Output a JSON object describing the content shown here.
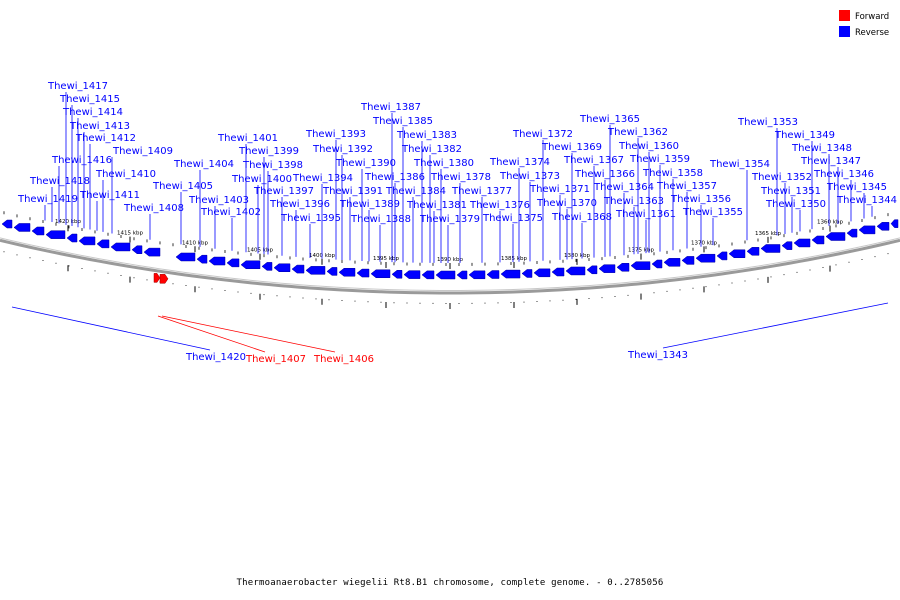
{
  "legend": {
    "forward_label": "Forward",
    "reverse_label": "Reverse",
    "forward_color": "#ff0000",
    "reverse_color": "#0000ff"
  },
  "caption": "Thermoanaerobacter wiegelii Rt8.B1 chromosome, complete genome. - 0..2785056",
  "scale_labels": [
    "1420 kbp",
    "1415 kbp",
    "1410 kbp",
    "1405 kbp",
    "1400 kbp",
    "1395 kbp",
    "1390 kbp",
    "1385 kbp",
    "1380 kbp",
    "1375 kbp",
    "1370 kbp",
    "1365 kbp",
    "1360 kbp"
  ],
  "reverse_genes": [
    "Thewi_1419",
    "Thewi_1418",
    "Thewi_1416",
    "Thewi_1417",
    "Thewi_1415",
    "Thewi_1414",
    "Thewi_1413",
    "Thewi_1412",
    "Thewi_1411",
    "Thewi_1410",
    "Thewi_1409",
    "Thewi_1408",
    "Thewi_1405",
    "Thewi_1404",
    "Thewi_1403",
    "Thewi_1402",
    "Thewi_1401",
    "Thewi_1400",
    "Thewi_1399",
    "Thewi_1398",
    "Thewi_1397",
    "Thewi_1396",
    "Thewi_1395",
    "Thewi_1394",
    "Thewi_1393",
    "Thewi_1392",
    "Thewi_1391",
    "Thewi_1390",
    "Thewi_1389",
    "Thewi_1388",
    "Thewi_1387",
    "Thewi_1386",
    "Thewi_1385",
    "Thewi_1384",
    "Thewi_1383",
    "Thewi_1382",
    "Thewi_1381",
    "Thewi_1380",
    "Thewi_1379",
    "Thewi_1378",
    "Thewi_1377",
    "Thewi_1376",
    "Thewi_1375",
    "Thewi_1374",
    "Thewi_1373",
    "Thewi_1372",
    "Thewi_1371",
    "Thewi_1370",
    "Thewi_1369",
    "Thewi_1368",
    "Thewi_1367",
    "Thewi_1366",
    "Thewi_1365",
    "Thewi_1364",
    "Thewi_1363",
    "Thewi_1362",
    "Thewi_1361",
    "Thewi_1360",
    "Thewi_1359",
    "Thewi_1358",
    "Thewi_1357",
    "Thewi_1356",
    "Thewi_1355",
    "Thewi_1354",
    "Thewi_1353",
    "Thewi_1352",
    "Thewi_1351",
    "Thewi_1350",
    "Thewi_1349",
    "Thewi_1348",
    "Thewi_1347",
    "Thewi_1346",
    "Thewi_1345",
    "Thewi_1344"
  ],
  "lower_labels": [
    {
      "name": "Thewi_1420",
      "strand": "reverse"
    },
    {
      "name": "Thewi_1407",
      "strand": "forward"
    },
    {
      "name": "Thewi_1406",
      "strand": "forward"
    },
    {
      "name": "Thewi_1343",
      "strand": "reverse"
    }
  ]
}
